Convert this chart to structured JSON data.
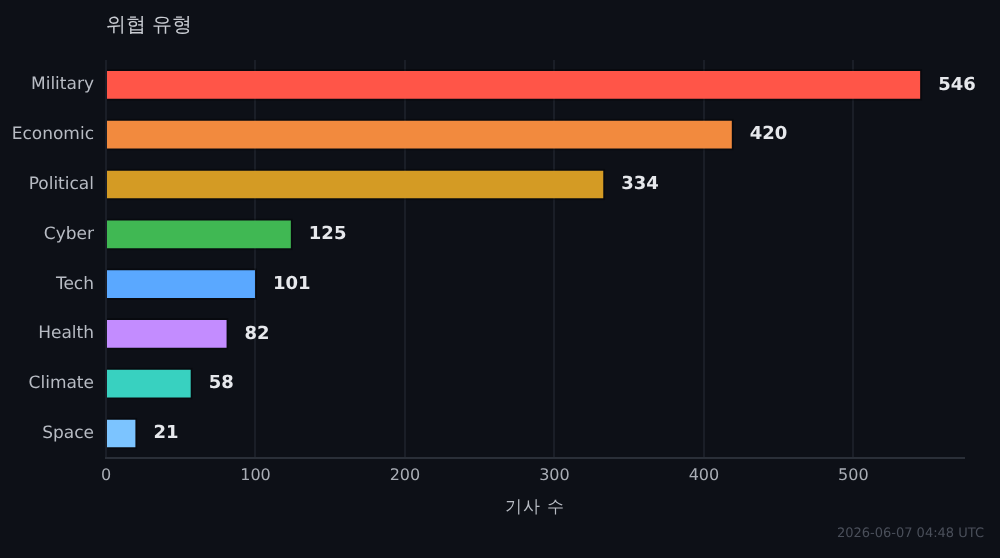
{
  "chart_data": {
    "type": "bar",
    "orientation": "horizontal",
    "title": "위협 유형",
    "xlabel": "기사 수",
    "categories": [
      "Military",
      "Economic",
      "Political",
      "Cyber",
      "Tech",
      "Health",
      "Climate",
      "Space"
    ],
    "values": [
      546,
      420,
      334,
      125,
      101,
      82,
      58,
      21
    ],
    "colors": [
      "#ff5548",
      "#f28a3e",
      "#d49b24",
      "#40b853",
      "#5aa8ff",
      "#c38cff",
      "#38d1c0",
      "#7cc4ff"
    ],
    "xlim": [
      0,
      574
    ],
    "xticks": [
      0,
      100,
      200,
      300,
      400,
      500
    ],
    "grid": "x",
    "data_labels": true,
    "legend": false,
    "annotations": [
      "2026-06-07 04:48 UTC"
    ]
  }
}
